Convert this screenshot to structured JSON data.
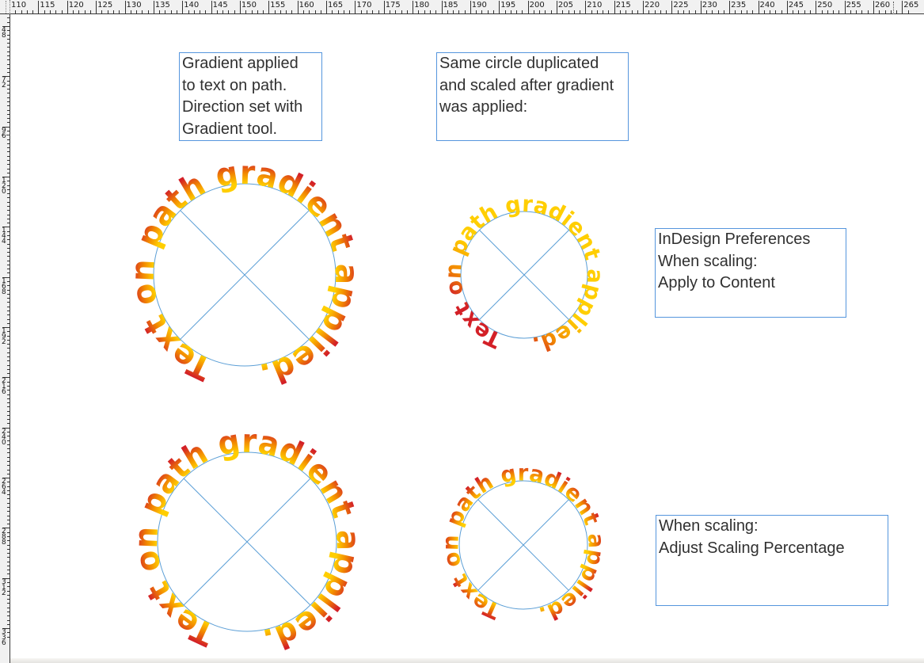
{
  "rulers": {
    "horizontal": {
      "labels": [
        "110",
        "115",
        "120",
        "125",
        "130",
        "135",
        "140",
        "145",
        "150",
        "155",
        "160",
        "165",
        "170",
        "175",
        "180",
        "185",
        "190",
        "195",
        "200",
        "205",
        "210",
        "215",
        "220",
        "225",
        "230",
        "235",
        "240",
        "245",
        "250",
        "255",
        "260",
        "265"
      ],
      "start": 110,
      "end": 266,
      "label_step": 5
    },
    "vertical": {
      "labels": [
        "48",
        "72",
        "96",
        "120",
        "144",
        "168",
        "192",
        "216",
        "240",
        "264",
        "288",
        "312",
        "336"
      ],
      "start": 48,
      "end": 336,
      "label_step": 24
    }
  },
  "canvas": {
    "path_text": "Text on path gradient applied.",
    "captions": [
      {
        "id": "gradient-applied",
        "text": "Gradient applied\nto text on path.\nDirection set with\nGradient tool."
      },
      {
        "id": "same-circle",
        "text": "Same circle duplicated\nand scaled after gradient\nwas applied:"
      },
      {
        "id": "preferences-apply-to-content",
        "text": "InDesign Preferences\nWhen scaling:\nApply to Content"
      },
      {
        "id": "preferences-adjust-scaling",
        "text": "When scaling:\nAdjust Scaling Percentage"
      }
    ]
  },
  "colors": {
    "gradient_yellow": "#ffce00",
    "gradient_orange": "#f28900",
    "gradient_red": "#d32027",
    "frame_blue": "#5596dd",
    "circle_blue": "#5c9fd6",
    "caption_text": "#303030"
  }
}
